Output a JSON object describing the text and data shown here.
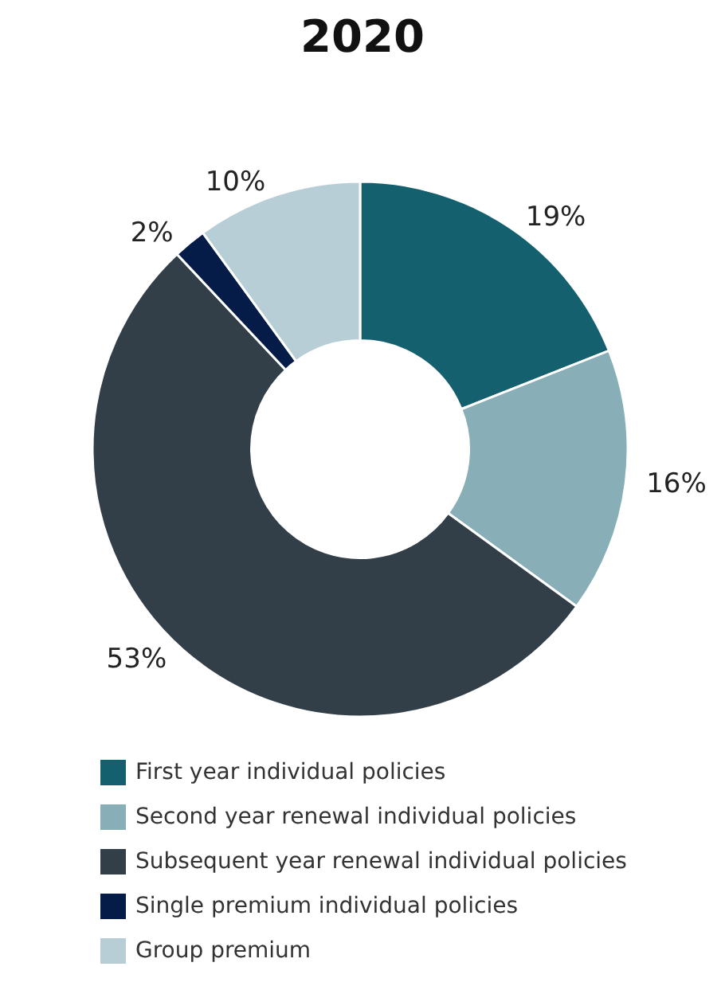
{
  "chart_data": {
    "type": "donut",
    "title": "2020",
    "categories": [
      "First year individual policies",
      "Second year renewal individual policies",
      "Subsequent year renewal individual policies",
      "Single premium individual policies",
      "Group premium"
    ],
    "values": [
      19,
      16,
      53,
      2,
      10
    ],
    "value_labels": [
      "19%",
      "16%",
      "53%",
      "2%",
      "10%"
    ],
    "colors": [
      "#14606e",
      "#88afb7",
      "#333f48",
      "#051c48",
      "#b7ced6"
    ],
    "legend": "bottom"
  }
}
